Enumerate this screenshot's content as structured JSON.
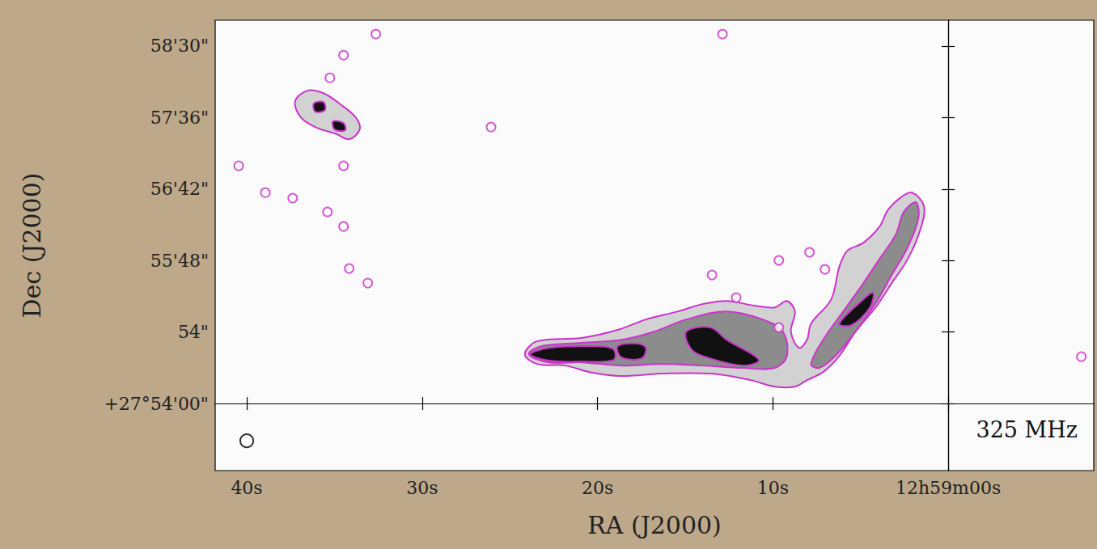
{
  "chart_data": {
    "type": "contour",
    "xlabel": "RA (J2000)",
    "ylabel": "Dec (J2000)",
    "annotation": "325 MHz",
    "grid": false,
    "color": "#cc33cc",
    "xlim": [
      41.8,
      -8.3
    ],
    "ylim": [
      -50.6,
      289.5
    ],
    "xticks": [
      {
        "value": 40,
        "label": "40s"
      },
      {
        "value": 30,
        "label": "30s"
      },
      {
        "value": 20,
        "label": "20s"
      },
      {
        "value": 10,
        "label": "10s"
      },
      {
        "value": 0,
        "label": "12h59m00s"
      }
    ],
    "yticks": [
      {
        "value": 0,
        "label": "+27°54'00\""
      },
      {
        "value": 54,
        "label": "54\""
      },
      {
        "value": 108,
        "label": "55'48\""
      },
      {
        "value": 162,
        "label": "56'42\""
      },
      {
        "value": 216,
        "label": "57'36\""
      },
      {
        "value": 270,
        "label": "58'30\""
      }
    ],
    "contours": [
      {
        "level": 1,
        "points": [
          [
            24.14,
            37.2
          ],
          [
            23.45,
            47.0
          ],
          [
            20.92,
            49.5
          ],
          [
            18.85,
            55.6
          ],
          [
            17.24,
            63.5
          ],
          [
            15.4,
            69.6
          ],
          [
            14.02,
            75.1
          ],
          [
            12.64,
            77.5
          ],
          [
            11.03,
            73.9
          ],
          [
            9.89,
            72.6
          ],
          [
            9.2,
            77.5
          ],
          [
            8.74,
            69.6
          ],
          [
            8.97,
            54.3
          ],
          [
            8.51,
            42.1
          ],
          [
            8.05,
            48.2
          ],
          [
            7.82,
            60.4
          ],
          [
            6.67,
            78.8
          ],
          [
            6.21,
            103.2
          ],
          [
            5.75,
            115.4
          ],
          [
            4.83,
            121.5
          ],
          [
            3.91,
            133.7
          ],
          [
            3.45,
            145.9
          ],
          [
            2.76,
            155.1
          ],
          [
            2.07,
            159.3
          ],
          [
            1.38,
            149.0
          ],
          [
            1.61,
            130.6
          ],
          [
            2.3,
            109.3
          ],
          [
            3.22,
            91.0
          ],
          [
            4.14,
            72.6
          ],
          [
            5.29,
            54.3
          ],
          [
            6.21,
            36.0
          ],
          [
            7.13,
            23.8
          ],
          [
            8.05,
            17.7
          ],
          [
            8.74,
            12.8
          ],
          [
            9.89,
            12.8
          ],
          [
            11.26,
            17.7
          ],
          [
            13.56,
            22.6
          ],
          [
            16.32,
            22.6
          ],
          [
            18.62,
            20.8
          ],
          [
            20.46,
            23.8
          ],
          [
            21.84,
            28.7
          ],
          [
            23.45,
            29.9
          ]
        ]
      },
      {
        "level": 1,
        "points": [
          [
            37.24,
            228.3
          ],
          [
            36.55,
            236.3
          ],
          [
            35.63,
            234.4
          ],
          [
            34.71,
            226.5
          ],
          [
            33.79,
            216.1
          ],
          [
            33.56,
            207.0
          ],
          [
            34.16,
            199.6
          ],
          [
            34.94,
            203.9
          ],
          [
            36.0,
            208.2
          ],
          [
            36.92,
            216.1
          ]
        ]
      },
      {
        "level": 2,
        "points": [
          [
            23.91,
            37.2
          ],
          [
            23.22,
            43.3
          ],
          [
            20.92,
            45.8
          ],
          [
            18.62,
            48.2
          ],
          [
            16.78,
            54.3
          ],
          [
            14.94,
            63.5
          ],
          [
            12.64,
            69.6
          ],
          [
            10.57,
            63.5
          ],
          [
            9.43,
            54.3
          ],
          [
            9.2,
            36.0
          ],
          [
            9.89,
            26.9
          ],
          [
            11.72,
            26.9
          ],
          [
            14.02,
            28.7
          ],
          [
            16.32,
            29.9
          ],
          [
            18.62,
            28.7
          ],
          [
            20.92,
            31.1
          ],
          [
            22.76,
            31.1
          ]
        ]
      },
      {
        "level": 2,
        "points": [
          [
            7.82,
            29.9
          ],
          [
            7.13,
            48.2
          ],
          [
            5.98,
            69.6
          ],
          [
            4.83,
            91.0
          ],
          [
            3.91,
            109.3
          ],
          [
            2.99,
            127.6
          ],
          [
            2.53,
            144.7
          ],
          [
            1.84,
            152.0
          ],
          [
            1.7,
            139.8
          ],
          [
            2.3,
            118.4
          ],
          [
            3.22,
            97.1
          ],
          [
            4.14,
            75.7
          ],
          [
            5.29,
            54.3
          ],
          [
            6.44,
            36.0
          ],
          [
            7.36,
            26.9
          ]
        ]
      },
      {
        "level": 3,
        "points": [
          [
            23.82,
            37.2
          ],
          [
            22.76,
            42.1
          ],
          [
            20.0,
            43.3
          ],
          [
            19.08,
            40.9
          ],
          [
            19.08,
            33.0
          ],
          [
            20.92,
            31.7
          ],
          [
            22.76,
            32.4
          ]
        ]
      },
      {
        "level": 3,
        "points": [
          [
            18.85,
            43.3
          ],
          [
            17.7,
            45.2
          ],
          [
            17.24,
            42.1
          ],
          [
            17.47,
            34.2
          ],
          [
            18.62,
            34.8
          ]
        ]
      },
      {
        "level": 3,
        "points": [
          [
            14.94,
            54.3
          ],
          [
            13.56,
            57.4
          ],
          [
            12.64,
            48.2
          ],
          [
            10.8,
            33.0
          ],
          [
            11.72,
            28.7
          ],
          [
            14.02,
            36.0
          ],
          [
            14.71,
            42.1
          ]
        ]
      },
      {
        "level": 3,
        "points": [
          [
            6.21,
            60.4
          ],
          [
            4.83,
            78.8
          ],
          [
            4.28,
            83.6
          ],
          [
            4.46,
            72.6
          ],
          [
            5.52,
            59.2
          ]
        ]
      },
      {
        "level": 3,
        "points": [
          [
            36.18,
            226.5
          ],
          [
            35.63,
            227.7
          ],
          [
            35.54,
            221.6
          ],
          [
            36.09,
            220.4
          ]
        ]
      },
      {
        "level": 3,
        "points": [
          [
            35.08,
            213.1
          ],
          [
            34.48,
            211.8
          ],
          [
            34.39,
            206.3
          ],
          [
            34.99,
            207.0
          ]
        ]
      }
    ],
    "islands": {
      "marker": "emptyCircle",
      "points": [
        [
          40.46,
          179.5
        ],
        [
          38.94,
          159.3
        ],
        [
          37.38,
          155.1
        ],
        [
          35.4,
          144.7
        ],
        [
          34.48,
          133.7
        ],
        [
          34.16,
          102.0
        ],
        [
          33.1,
          91.0
        ],
        [
          26.07,
          208.8
        ],
        [
          34.48,
          263.1
        ],
        [
          35.26,
          246.0
        ],
        [
          34.48,
          179.5
        ],
        [
          12.87,
          279.0
        ],
        [
          32.64,
          279.0
        ],
        [
          13.47,
          97.1
        ],
        [
          12.09,
          80.0
        ],
        [
          9.66,
          108.1
        ],
        [
          7.91,
          114.2
        ],
        [
          7.03,
          101.3
        ],
        [
          -7.59,
          35.4
        ],
        [
          9.66,
          57.4
        ]
      ]
    },
    "beam": {
      "marker": "emptyCircle",
      "color": "#000000",
      "x": 40.0,
      "y": -28.1
    }
  }
}
